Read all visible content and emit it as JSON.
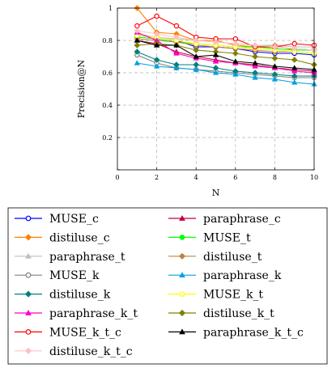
{
  "chart_data": {
    "type": "line",
    "title": "",
    "xlabel": "N",
    "ylabel": "Precision@N",
    "xlim": [
      0,
      10
    ],
    "ylim": [
      0,
      1
    ],
    "xticks": [
      "0",
      "2",
      "4",
      "6",
      "8",
      "10"
    ],
    "yticks": [
      "0",
      "0.2",
      "0.4",
      "0.6",
      "0.8",
      "1"
    ],
    "grid": true,
    "legend_position": "bottom",
    "x": [
      1,
      2,
      3,
      4,
      5,
      6,
      7,
      8,
      9,
      10
    ],
    "series": [
      {
        "name": "MUSE_c",
        "color": "#0000ff",
        "marker": "circle-open",
        "values": [
          0.83,
          0.82,
          0.8,
          0.76,
          0.76,
          0.75,
          0.73,
          0.72,
          0.72,
          0.71
        ]
      },
      {
        "name": "paraphrase_c",
        "color": "#bf0040",
        "marker": "triangle-filled",
        "values": [
          0.8,
          0.78,
          0.73,
          0.7,
          0.68,
          0.66,
          0.65,
          0.63,
          0.62,
          0.61
        ]
      },
      {
        "name": "distiluse_c",
        "color": "#ff8000",
        "marker": "diamond-filled",
        "values": [
          1.0,
          0.85,
          0.84,
          0.8,
          0.8,
          0.77,
          0.76,
          0.77,
          0.74,
          0.74
        ]
      },
      {
        "name": "MUSE_t",
        "color": "#00ff00",
        "marker": "circle-filled",
        "values": [
          0.82,
          0.81,
          0.79,
          0.78,
          0.77,
          0.76,
          0.76,
          0.75,
          0.74,
          0.74
        ]
      },
      {
        "name": "paraphrase_t",
        "color": "#bfbfbf",
        "marker": "triangle-filled",
        "values": [
          0.84,
          0.82,
          0.81,
          0.8,
          0.79,
          0.78,
          0.77,
          0.77,
          0.76,
          0.76
        ]
      },
      {
        "name": "distiluse_t",
        "color": "#bf8040",
        "marker": "diamond-filled",
        "values": [
          0.81,
          0.8,
          0.79,
          0.77,
          0.76,
          0.75,
          0.74,
          0.73,
          0.73,
          0.72
        ]
      },
      {
        "name": "MUSE_k",
        "color": "#808080",
        "marker": "circle-open",
        "values": [
          0.71,
          0.66,
          0.63,
          0.62,
          0.61,
          0.6,
          0.59,
          0.58,
          0.57,
          0.57
        ]
      },
      {
        "name": "paraphrase_k",
        "color": "#00a0e0",
        "marker": "triangle-filled",
        "values": [
          0.66,
          0.64,
          0.63,
          0.62,
          0.6,
          0.59,
          0.57,
          0.56,
          0.54,
          0.53
        ]
      },
      {
        "name": "distiluse_k",
        "color": "#008080",
        "marker": "diamond-filled",
        "values": [
          0.73,
          0.68,
          0.65,
          0.65,
          0.63,
          0.61,
          0.6,
          0.59,
          0.58,
          0.58
        ]
      },
      {
        "name": "MUSE_k_t",
        "color": "#ffff00",
        "marker": "circle-open",
        "values": [
          0.83,
          0.82,
          0.8,
          0.78,
          0.77,
          0.76,
          0.75,
          0.74,
          0.73,
          0.72
        ]
      },
      {
        "name": "paraphrase_k_t",
        "color": "#ff00bf",
        "marker": "triangle-filled",
        "values": [
          0.85,
          0.8,
          0.72,
          0.69,
          0.67,
          0.66,
          0.64,
          0.63,
          0.61,
          0.6
        ]
      },
      {
        "name": "distiluse_k_t",
        "color": "#808000",
        "marker": "diamond-filled",
        "values": [
          0.77,
          0.78,
          0.77,
          0.74,
          0.73,
          0.72,
          0.7,
          0.69,
          0.68,
          0.65
        ]
      },
      {
        "name": "MUSE_k_t_c",
        "color": "#ff0000",
        "marker": "circle-open",
        "values": [
          0.89,
          0.95,
          0.89,
          0.82,
          0.81,
          0.81,
          0.76,
          0.76,
          0.78,
          0.77
        ]
      },
      {
        "name": "paraphrase_k_t_c",
        "color": "#000000",
        "marker": "triangle-filled",
        "values": [
          0.8,
          0.77,
          0.77,
          0.7,
          0.71,
          0.67,
          0.66,
          0.64,
          0.63,
          0.62
        ]
      },
      {
        "name": "distiluse_k_t_c",
        "color": "#ffc0c0",
        "marker": "diamond-filled",
        "values": [
          0.86,
          0.84,
          0.82,
          0.8,
          0.79,
          0.78,
          0.77,
          0.76,
          0.75,
          0.74
        ]
      }
    ]
  }
}
